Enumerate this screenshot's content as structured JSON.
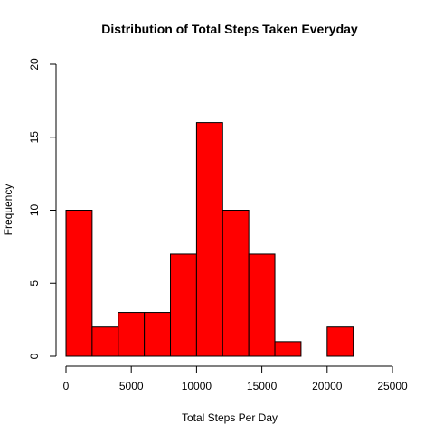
{
  "chart_data": {
    "type": "bar",
    "title": "Distribution of Total Steps Taken Everyday",
    "xlabel": "Total Steps Per Day",
    "ylabel": "Frequency",
    "bin_edges": [
      0,
      2000,
      4000,
      6000,
      8000,
      10000,
      12000,
      14000,
      16000,
      18000,
      20000,
      22000
    ],
    "values": [
      10,
      2,
      3,
      3,
      7,
      16,
      10,
      7,
      1,
      0,
      2
    ],
    "xlim": [
      0,
      25000
    ],
    "ylim": [
      0,
      20
    ],
    "x_ticks": [
      0,
      5000,
      10000,
      15000,
      20000,
      25000
    ],
    "y_ticks": [
      0,
      5,
      10,
      15,
      20
    ],
    "bar_color": "#ff0000",
    "grid": false,
    "legend": "none"
  }
}
